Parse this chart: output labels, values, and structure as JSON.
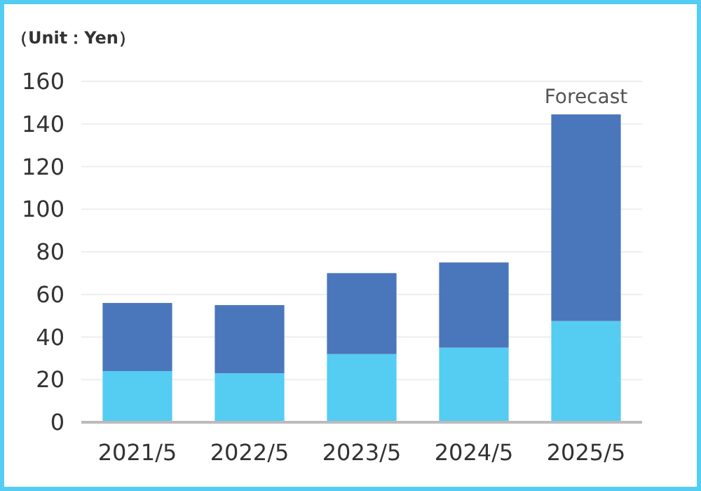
{
  "chart_data": {
    "type": "bar",
    "stacked": true,
    "title": "（Unit：Yen）",
    "categories": [
      "2021/5",
      "2022/5",
      "2023/5",
      "2024/5",
      "2025/5"
    ],
    "series": [
      {
        "color": "#55ccf2",
        "values": [
          24,
          23,
          32,
          35,
          47.5
        ]
      },
      {
        "color": "#4a76bb",
        "values": [
          32,
          32,
          38,
          40,
          97
        ]
      }
    ],
    "ylim": [
      0,
      160
    ],
    "yticks": [
      0,
      20,
      40,
      60,
      80,
      100,
      120,
      140,
      160
    ],
    "grid": "y",
    "annotations": [
      {
        "text": "Forecast",
        "x": "2025/5",
        "y": 144.5
      }
    ]
  }
}
